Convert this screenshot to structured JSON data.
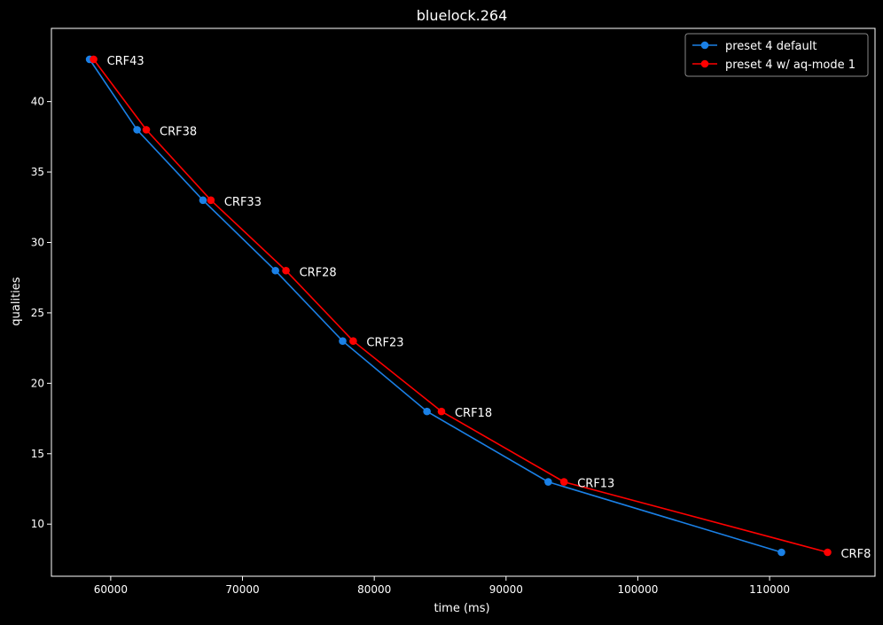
{
  "chart_data": {
    "type": "line",
    "title": "bluelock.264",
    "xlabel": "time (ms)",
    "ylabel": "qualities",
    "xlim": [
      55500,
      118000
    ],
    "ylim": [
      6.3,
      45.2
    ],
    "xticks": [
      60000,
      70000,
      80000,
      90000,
      100000,
      110000
    ],
    "yticks": [
      10,
      15,
      20,
      25,
      30,
      35,
      40
    ],
    "grid": false,
    "legend_position": "top-right",
    "colors": {
      "background": "#000000",
      "foreground": "#ffffff"
    },
    "series": [
      {
        "name": "preset 4 default",
        "color": "#1a80e6",
        "points": [
          {
            "x": 58400,
            "y": 43
          },
          {
            "x": 62000,
            "y": 38
          },
          {
            "x": 67000,
            "y": 33
          },
          {
            "x": 72500,
            "y": 28
          },
          {
            "x": 77600,
            "y": 23
          },
          {
            "x": 84000,
            "y": 18
          },
          {
            "x": 93200,
            "y": 13
          },
          {
            "x": 110900,
            "y": 8
          }
        ]
      },
      {
        "name": "preset 4 w/ aq-mode 1",
        "color": "#ff0000",
        "points": [
          {
            "x": 58700,
            "y": 43
          },
          {
            "x": 62700,
            "y": 38
          },
          {
            "x": 67600,
            "y": 33
          },
          {
            "x": 73300,
            "y": 28
          },
          {
            "x": 78400,
            "y": 23
          },
          {
            "x": 85100,
            "y": 18
          },
          {
            "x": 94400,
            "y": 13
          },
          {
            "x": 114400,
            "y": 8
          }
        ]
      }
    ],
    "annotations": [
      {
        "text": "CRF43",
        "x": 58700,
        "y": 43
      },
      {
        "text": "CRF38",
        "x": 62700,
        "y": 38
      },
      {
        "text": "CRF33",
        "x": 67600,
        "y": 33
      },
      {
        "text": "CRF28",
        "x": 73300,
        "y": 28
      },
      {
        "text": "CRF23",
        "x": 78400,
        "y": 23
      },
      {
        "text": "CRF18",
        "x": 85100,
        "y": 18
      },
      {
        "text": "CRF13",
        "x": 94400,
        "y": 13
      },
      {
        "text": "CRF8",
        "x": 114400,
        "y": 8
      }
    ]
  }
}
